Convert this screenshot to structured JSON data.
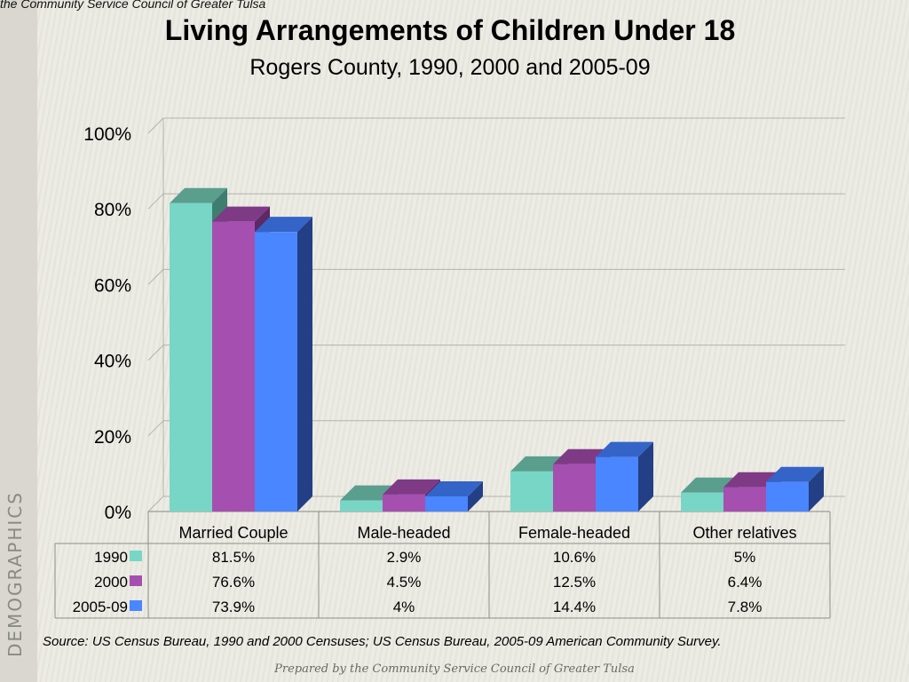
{
  "header_note": "the Community Service Council of Greater Tulsa",
  "side_label": "DEMOGRAPHICS",
  "source": "Source:  US Census Bureau, 1990 and 2000 Censuses; US Census Bureau, 2005-09 American Community Survey.",
  "footer": "Prepared by the Community Service Council of Greater Tulsa",
  "chart_data": {
    "type": "bar",
    "title": "Living Arrangements of Children Under 18",
    "subtitle": "Rogers County, 1990, 2000 and 2005-09",
    "xlabel": "",
    "ylabel": "",
    "categories": [
      "Married Couple",
      "Male-headed",
      "Female-headed",
      "Other relatives"
    ],
    "series": [
      {
        "name": "1990",
        "values": [
          81.5,
          2.9,
          10.6,
          5
        ],
        "labels": [
          "81.5%",
          "2.9%",
          "10.6%",
          "5%"
        ],
        "color": "#78d6c6",
        "top_color": "#5a9e8e",
        "side_color": "#3e7d70"
      },
      {
        "name": "2000",
        "values": [
          76.6,
          4.5,
          12.5,
          6.4
        ],
        "labels": [
          "76.6%",
          "4.5%",
          "12.5%",
          "6.4%"
        ],
        "color": "#a54fb0",
        "top_color": "#7f3a86",
        "side_color": "#5e2865"
      },
      {
        "name": "2005-09",
        "values": [
          73.9,
          4,
          14.4,
          7.8
        ],
        "labels": [
          "73.9%",
          "4%",
          "14.4%",
          "7.8%"
        ],
        "color": "#4a86ff",
        "top_color": "#3464c8",
        "side_color": "#233f86"
      }
    ],
    "ylim": [
      0,
      100
    ],
    "yticks": [
      "0%",
      "20%",
      "40%",
      "60%",
      "80%",
      "100%"
    ],
    "grid": true,
    "data_table": true
  }
}
